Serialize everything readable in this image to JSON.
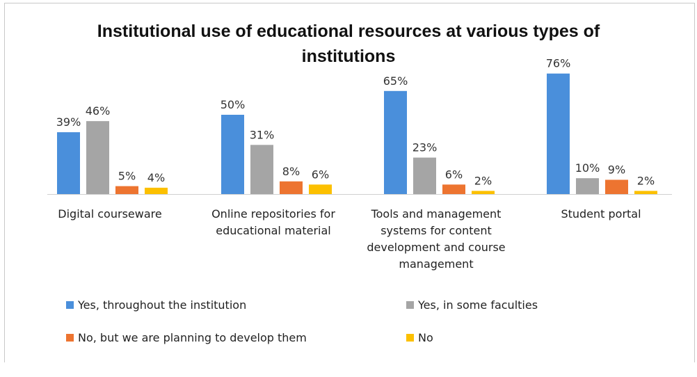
{
  "chart_data": {
    "type": "bar",
    "title": "Institutional use of educational resources at various types of institutions",
    "title_lines": [
      "Institutional use of educational resources at various types of",
      "institutions"
    ],
    "categories": [
      "Digital courseware",
      "Online repositories for educational material",
      "Tools and management systems for content development and course management",
      "Student portal"
    ],
    "category_label_lines": [
      [
        "Digital courseware"
      ],
      [
        "Online repositories for",
        "educational material"
      ],
      [
        "Tools and management",
        "systems for content",
        "development and course",
        "management"
      ],
      [
        "Student portal"
      ]
    ],
    "series": [
      {
        "name": "Yes, throughout the institution",
        "color": "#4a8fdb",
        "values": [
          39,
          50,
          65,
          76
        ],
        "labels": [
          "39%",
          "50%",
          "65%",
          "76%"
        ]
      },
      {
        "name": "Yes, in some faculties",
        "color": "#a5a5a5",
        "values": [
          46,
          31,
          23,
          10
        ],
        "labels": [
          "46%",
          "31%",
          "23%",
          "10%"
        ]
      },
      {
        "name": "No, but we are planning to develop them",
        "color": "#ed7430",
        "values": [
          5,
          8,
          6,
          9
        ],
        "labels": [
          "5%",
          "8%",
          "6%",
          "9%"
        ]
      },
      {
        "name": "No",
        "color": "#fcc000",
        "values": [
          4,
          6,
          2,
          2
        ],
        "labels": [
          "4%",
          "6%",
          "2%",
          "2%"
        ]
      }
    ],
    "ylim": [
      0,
      100
    ],
    "grid": false,
    "legend_position": "bottom"
  }
}
